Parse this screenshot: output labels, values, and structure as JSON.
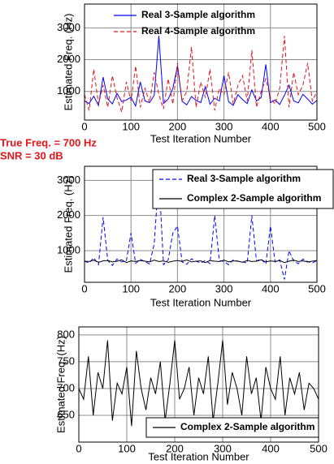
{
  "chart_data": [
    {
      "type": "line",
      "xlabel": "Test Iteration Number",
      "ylabel": "Estimated Freq. (Hz)",
      "grid": true,
      "legend": "upper center",
      "annotations": [
        "True Freq. = 700 Hz",
        "SNR = 30 dB"
      ],
      "xlim": [
        0,
        500
      ],
      "xticks": [
        0,
        100,
        200,
        300,
        400,
        500
      ],
      "ylim": [
        100,
        3750
      ],
      "yticks": [
        1000,
        2000,
        3000
      ],
      "x": [
        0,
        10,
        20,
        30,
        40,
        50,
        60,
        70,
        80,
        90,
        100,
        110,
        120,
        130,
        140,
        150,
        160,
        170,
        180,
        190,
        200,
        210,
        220,
        230,
        240,
        250,
        260,
        270,
        280,
        290,
        300,
        310,
        320,
        330,
        340,
        350,
        360,
        370,
        380,
        390,
        400,
        410,
        420,
        430,
        440,
        450,
        460,
        470,
        480,
        490,
        500
      ],
      "series": [
        {
          "name": "Real 3-Sample algorithm",
          "color": "#0000ff",
          "dashed": false,
          "values": [
            700,
            620,
            850,
            560,
            1450,
            760,
            610,
            940,
            680,
            730,
            820,
            540,
            1300,
            700,
            650,
            880,
            2750,
            620,
            760,
            1100,
            1800,
            690,
            580,
            840,
            720,
            650,
            1150,
            600,
            790,
            700,
            1500,
            680,
            560,
            900,
            740,
            620,
            1050,
            700,
            810,
            1850,
            650,
            730,
            590,
            880,
            1200,
            700,
            640,
            910,
            760,
            600,
            720
          ]
        },
        {
          "name": "Real 4-Sample algorithm",
          "color": "#e0141b",
          "dashed": true,
          "values": [
            900,
            400,
            1700,
            600,
            1200,
            500,
            1500,
            800,
            350,
            1300,
            700,
            1800,
            500,
            1100,
            650,
            1600,
            900,
            450,
            1400,
            600,
            1900,
            700,
            1000,
            2400,
            500,
            1300,
            800,
            1700,
            400,
            1100,
            900,
            1600,
            600,
            1200,
            1500,
            700,
            2300,
            500,
            1000,
            1400,
            800,
            600,
            1100,
            2750,
            500,
            1600,
            900,
            1200,
            1900,
            700,
            1000
          ]
        }
      ]
    },
    {
      "type": "line",
      "xlabel": "Test Iteration Number",
      "ylabel": "Estimated Freq. (Hz)",
      "grid": true,
      "legend": "upper right",
      "xlim": [
        0,
        500
      ],
      "xticks": [
        0,
        100,
        200,
        300,
        400,
        500
      ],
      "ylim": [
        100,
        3400
      ],
      "yticks": [
        1000,
        2000,
        3000
      ],
      "x": [
        0,
        10,
        20,
        30,
        40,
        50,
        60,
        70,
        80,
        90,
        100,
        110,
        120,
        130,
        140,
        150,
        160,
        170,
        180,
        190,
        200,
        210,
        220,
        230,
        240,
        250,
        260,
        270,
        280,
        290,
        300,
        310,
        320,
        330,
        340,
        350,
        360,
        370,
        380,
        390,
        400,
        410,
        420,
        430,
        440,
        450,
        460,
        470,
        480,
        490,
        500
      ],
      "series": [
        {
          "name": "Real 3-Sample algorithm",
          "color": "#0000ff",
          "dashed": true,
          "values": [
            700,
            650,
            800,
            600,
            1950,
            720,
            580,
            760,
            680,
            710,
            1500,
            640,
            750,
            690,
            620,
            1200,
            3150,
            600,
            740,
            1500,
            1700,
            680,
            610,
            770,
            700,
            650,
            720,
            630,
            2000,
            720,
            690,
            600,
            740,
            700,
            680,
            650,
            2000,
            710,
            760,
            620,
            1700,
            680,
            740,
            180,
            1000,
            700,
            630,
            760,
            690,
            650,
            720
          ]
        },
        {
          "name": "Complex 2-Sample algorithm",
          "color": "#000000",
          "dashed": false,
          "values": [
            700,
            690,
            730,
            670,
            710,
            720,
            680,
            700,
            740,
            660,
            710,
            690,
            720,
            700,
            680,
            730,
            690,
            710,
            670,
            700,
            720,
            690,
            740,
            680,
            700,
            710,
            660,
            720,
            700,
            690,
            730,
            680,
            710,
            700,
            670,
            720,
            690,
            700,
            740,
            680,
            710,
            690,
            720,
            660,
            700,
            730,
            690,
            710,
            680,
            700,
            720
          ]
        }
      ]
    },
    {
      "type": "line",
      "xlabel": "Test Iteration Number",
      "ylabel": "Estimated Freq. (Hz)",
      "grid": true,
      "legend": "lower right",
      "xlim": [
        0,
        500
      ],
      "xticks": [
        0,
        100,
        200,
        300,
        400,
        500
      ],
      "ylim": [
        600,
        815
      ],
      "yticks": [
        650,
        700,
        750,
        800
      ],
      "x": [
        0,
        10,
        20,
        30,
        40,
        50,
        60,
        70,
        80,
        90,
        100,
        110,
        120,
        130,
        140,
        150,
        160,
        170,
        180,
        190,
        200,
        210,
        220,
        230,
        240,
        250,
        260,
        270,
        280,
        290,
        300,
        310,
        320,
        330,
        340,
        350,
        360,
        370,
        380,
        390,
        400,
        410,
        420,
        430,
        440,
        450,
        460,
        470,
        480,
        490,
        500
      ],
      "series": [
        {
          "name": "Complex 2-Sample algorithm",
          "color": "#000000",
          "dashed": false,
          "values": [
            700,
            680,
            760,
            650,
            730,
            700,
            790,
            640,
            710,
            690,
            740,
            630,
            770,
            700,
            660,
            720,
            690,
            750,
            640,
            710,
            790,
            680,
            700,
            740,
            650,
            720,
            690,
            760,
            640,
            710,
            790,
            670,
            730,
            700,
            650,
            760,
            690,
            720,
            640,
            740,
            700,
            680,
            760,
            650,
            720,
            690,
            730,
            660,
            710,
            700,
            680
          ]
        }
      ]
    }
  ]
}
